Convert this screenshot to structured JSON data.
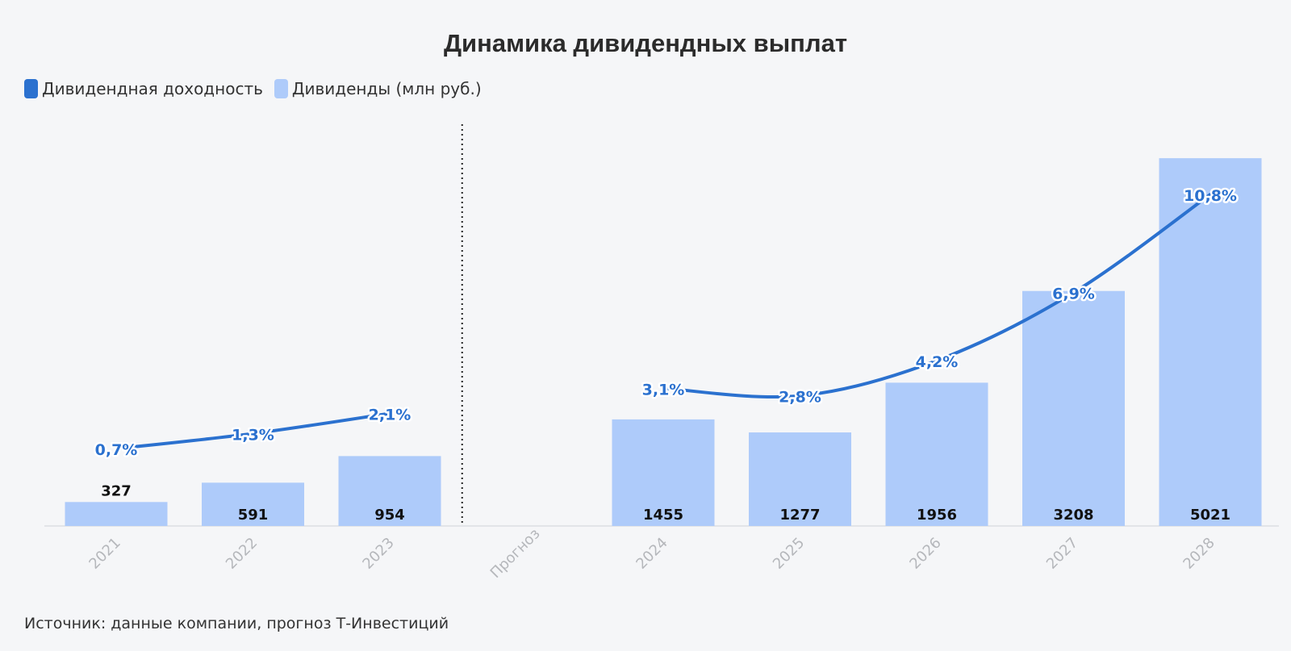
{
  "title": "Динамика дивидендных выплат",
  "legend": [
    {
      "label": "Дивидендная доходность",
      "color": "#2b71cf"
    },
    {
      "label": "Дивиденды (млн руб.)",
      "color": "#aecbfa"
    }
  ],
  "source": "Источник: данные компании, прогноз Т-Инвестиций",
  "chart_data": {
    "type": "bar",
    "categories": [
      "2021",
      "2022",
      "2023",
      "Прогноз",
      "2024",
      "2025",
      "2026",
      "2027",
      "2028"
    ],
    "series": [
      {
        "name": "Дивиденды (млн руб.)",
        "type": "bar",
        "values": [
          327,
          591,
          954,
          null,
          1455,
          1277,
          1956,
          3208,
          5021
        ],
        "labels": [
          "327",
          "591",
          "954",
          "",
          "1455",
          "1277",
          "1956",
          "3208",
          "5021"
        ],
        "color": "#aecbfa"
      },
      {
        "name": "Дивидендная доходность",
        "type": "line",
        "values": [
          0.7,
          1.3,
          2.1,
          null,
          3.1,
          2.8,
          4.2,
          6.9,
          10.8
        ],
        "labels": [
          "0,7%",
          "1,3%",
          "2,1%",
          "",
          "3,1%",
          "2,8%",
          "4,2%",
          "6,9%",
          "10,8%"
        ],
        "color": "#2b71cf"
      }
    ],
    "divider_category": "Прогноз",
    "grid": false,
    "legend_position": "top-left"
  }
}
